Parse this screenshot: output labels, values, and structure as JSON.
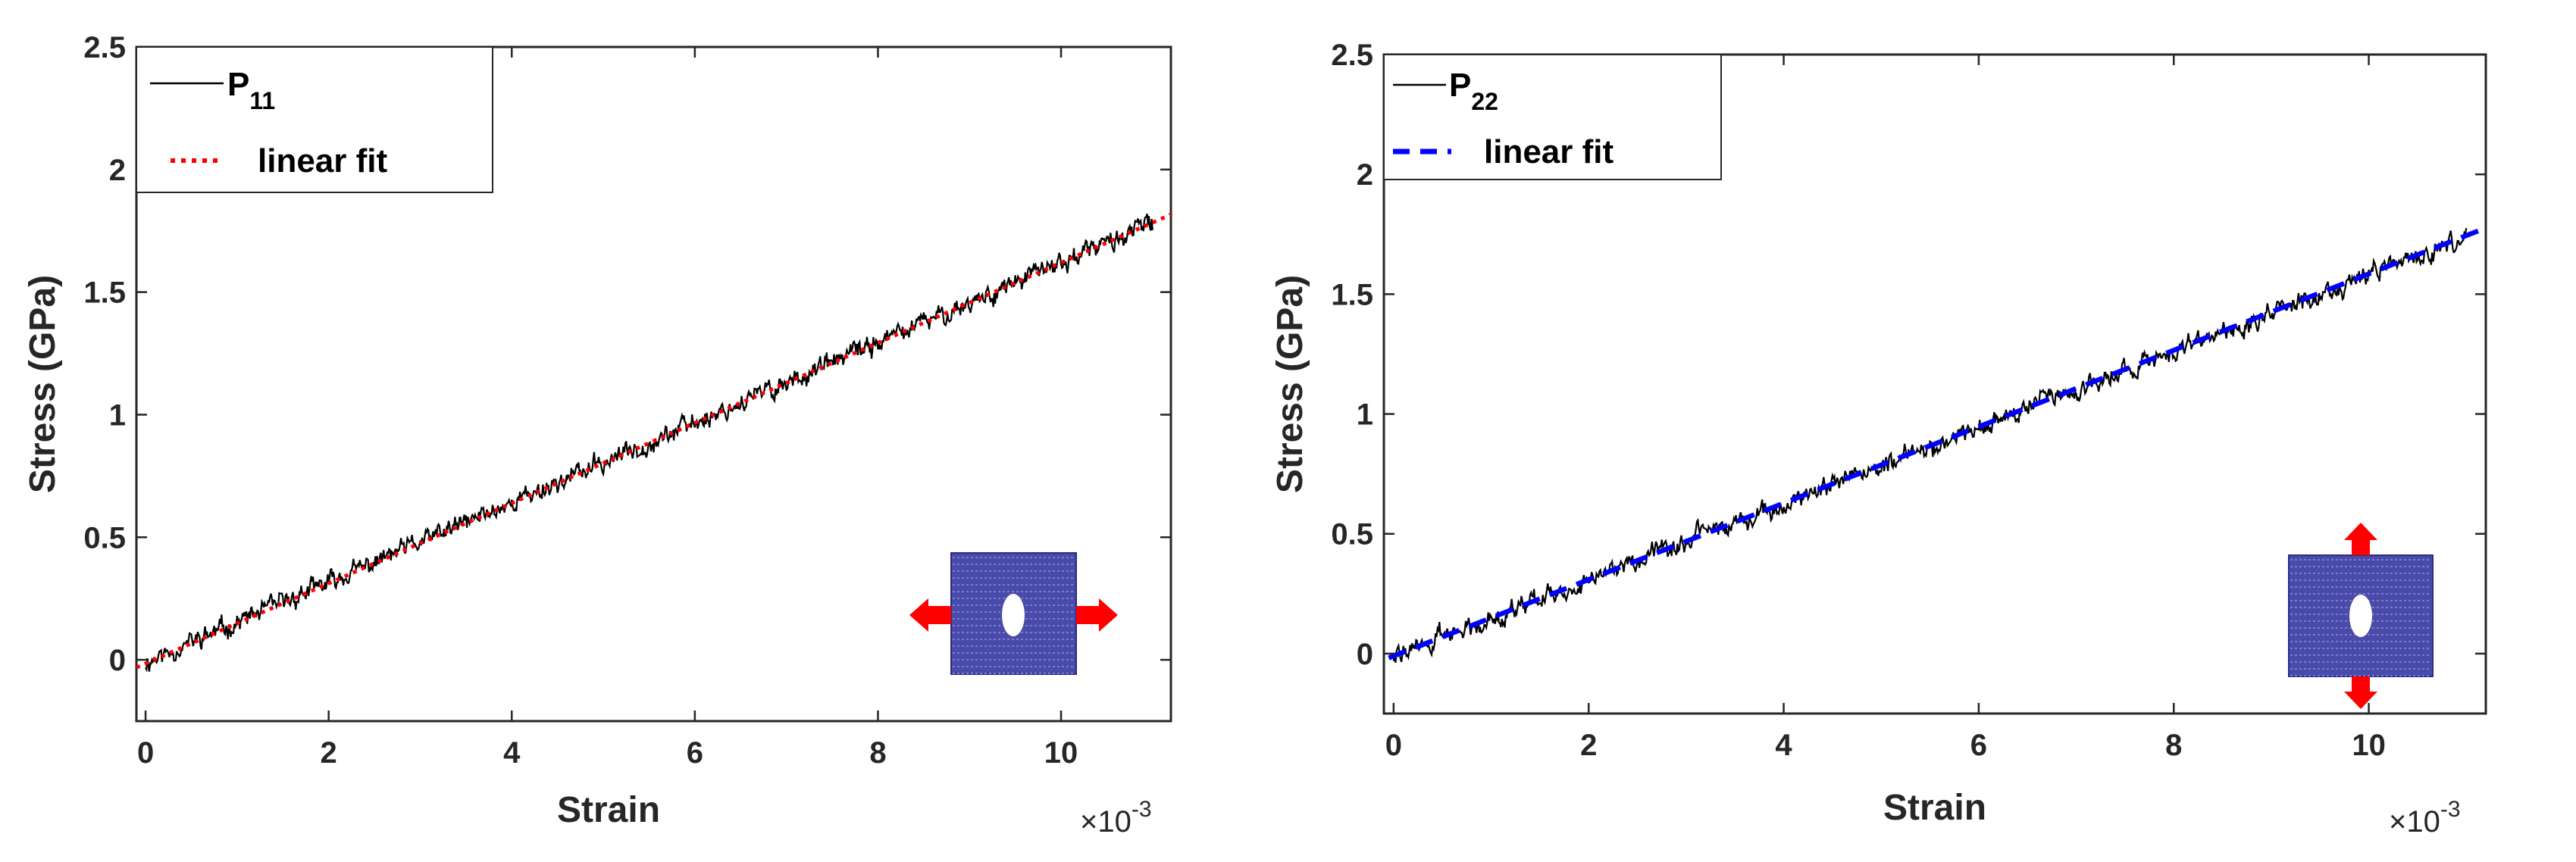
{
  "chart_data": [
    {
      "type": "line",
      "xlabel": "Strain",
      "ylabel": "Stress (GPa)",
      "x_multiplier": {
        "base": "×10",
        "exponent": "-3"
      },
      "xlim": [
        -0.1,
        11.2
      ],
      "ylim": [
        -0.25,
        2.5
      ],
      "xticks": [
        0,
        2,
        4,
        6,
        8,
        10
      ],
      "xtick_labels": [
        "0",
        "2",
        "4",
        "6",
        "8",
        "10"
      ],
      "yticks": [
        0,
        0.5,
        1,
        1.5,
        2,
        2.5
      ],
      "ytick_labels": [
        "0",
        "0.5",
        "1",
        "1.5",
        "2",
        "2.5"
      ],
      "legend_position": "top-left",
      "series": [
        {
          "name": "P",
          "subscript": "11",
          "style": "solid",
          "color": "#000000",
          "slope": 0.163,
          "intercept": -0.01,
          "noise": 0.035,
          "x_start": 0.0,
          "x_end": 11.0,
          "seed": 11
        },
        {
          "name": "linear fit",
          "style": "dotted",
          "color": "#ff0000",
          "slope": 0.1635,
          "intercept": -0.015,
          "x_start": -0.1,
          "x_end": 11.2
        }
      ],
      "inset": {
        "description": "plate with hole",
        "arrows": "horizontal",
        "fill": "#4a4aa8",
        "arrow_color": "#ff0000"
      }
    },
    {
      "type": "line",
      "xlabel": "Strain",
      "ylabel": "Stress (GPa)",
      "x_multiplier": {
        "base": "×10",
        "exponent": "-3"
      },
      "xlim": [
        -0.1,
        11.2
      ],
      "ylim": [
        -0.25,
        2.5
      ],
      "xticks": [
        0,
        2,
        4,
        6,
        8,
        10
      ],
      "xtick_labels": [
        "0",
        "2",
        "4",
        "6",
        "8",
        "10"
      ],
      "yticks": [
        0,
        0.5,
        1,
        1.5,
        2,
        2.5
      ],
      "ytick_labels": [
        "0",
        "0.5",
        "1",
        "1.5",
        "2",
        "2.5"
      ],
      "legend_position": "top-left",
      "series": [
        {
          "name": "P",
          "subscript": "22",
          "style": "solid",
          "color": "#000000",
          "slope": 0.159,
          "intercept": -0.01,
          "noise": 0.035,
          "x_start": 0.0,
          "x_end": 11.0,
          "seed": 22
        },
        {
          "name": "linear fit",
          "style": "dashed",
          "color": "#0000ff",
          "slope": 0.1595,
          "intercept": -0.01,
          "x_start": -0.05,
          "x_end": 11.2
        }
      ],
      "inset": {
        "description": "plate with hole",
        "arrows": "vertical",
        "fill": "#4a4aa8",
        "arrow_color": "#ff0000"
      }
    }
  ]
}
